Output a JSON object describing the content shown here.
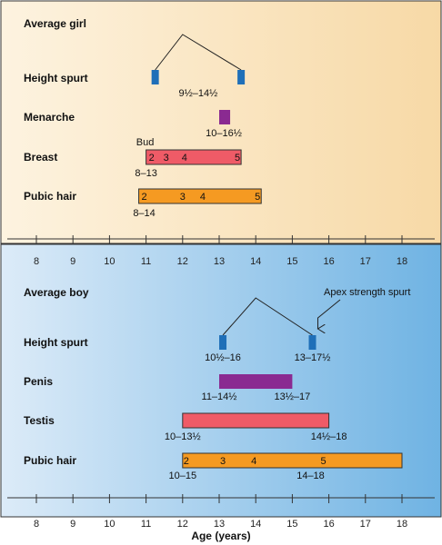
{
  "colors": {
    "girl_bg_left": "#fdf3e0",
    "girl_bg_right": "#f7d9a6",
    "boy_bg_left": "#dcebf8",
    "boy_bg_right": "#6fb3e3",
    "blue_marker": "#1f6fb8",
    "purple": "#8a2a91",
    "red": "#ef5b67",
    "orange": "#f59a22"
  },
  "axis": {
    "min": 8,
    "max": 18,
    "ticks": [
      "8",
      "9",
      "10",
      "11",
      "12",
      "13",
      "14",
      "15",
      "16",
      "17",
      "18"
    ],
    "title": "Age (years)"
  },
  "girl": {
    "title": "Average girl",
    "height_spurt": {
      "label": "Height spurt",
      "start": 11.25,
      "end": 13.6,
      "peak": 12,
      "range_label": "9½–14½"
    },
    "menarche": {
      "label": "Menarche",
      "start": 13,
      "end": 13.25,
      "range_label": "10–16½"
    },
    "breast": {
      "label": "Breast",
      "start": 11,
      "end": 13.6,
      "annotation": "Bud",
      "stages": [
        "2",
        "3",
        "4",
        "5"
      ],
      "stage_ages": [
        11.15,
        11.55,
        12.05,
        13.5
      ],
      "range_label": "8–13"
    },
    "pubic_hair": {
      "label": "Pubic hair",
      "start": 10.8,
      "end": 14.15,
      "stages": [
        "2",
        "3",
        "4",
        "5"
      ],
      "stage_ages": [
        10.95,
        12,
        12.55,
        14.05
      ],
      "range_label": "8–14"
    }
  },
  "boy": {
    "title": "Average boy",
    "apex_note": "Apex strength spurt",
    "height_spurt": {
      "label": "Height spurt",
      "start": 13.1,
      "end": 15.55,
      "peak": 14,
      "range_label_start": "10½–16",
      "range_label_end": "13–17½"
    },
    "penis": {
      "label": "Penis",
      "start": 13,
      "end": 15,
      "range_label_start": "11–14½",
      "range_label_end": "13½–17"
    },
    "testis": {
      "label": "Testis",
      "start": 12,
      "end": 16,
      "range_label_start": "10–13½",
      "range_label_end": "14½–18"
    },
    "pubic_hair": {
      "label": "Pubic hair",
      "start": 12,
      "end": 18,
      "stages": [
        "2",
        "3",
        "4",
        "5"
      ],
      "stage_ages": [
        12.1,
        13.1,
        13.95,
        15.85
      ],
      "range_label_start": "10–15",
      "range_label_end": "14–18"
    }
  }
}
